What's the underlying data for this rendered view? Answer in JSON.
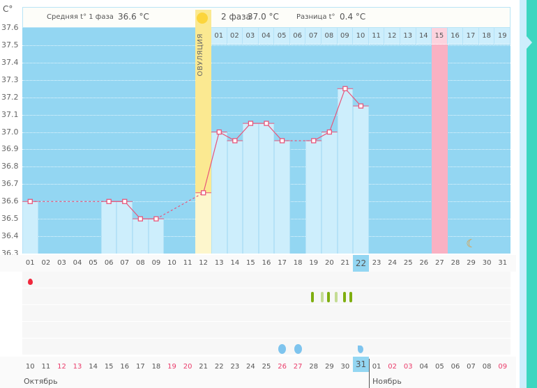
{
  "y_unit": "C°",
  "header": {
    "phase1_label": "Средняя t° 1 фаза",
    "phase1_value": "36.6 °C",
    "phase2_label": "2 фаза",
    "phase2_value": "37.0 °C",
    "diff_label": "Разница t°",
    "diff_value": "0.4 °C"
  },
  "ovulation_label": "ОВУЛЯЦИЯ",
  "y_ticks": [
    "37.6",
    "37.5",
    "37.4",
    "37.3",
    "37.2",
    "37.1",
    "37.0",
    "36.9",
    "36.8",
    "36.7",
    "36.6",
    "36.5",
    "36.4",
    "36.3"
  ],
  "cycle_days": [
    "01",
    "02",
    "03",
    "04",
    "05",
    "06",
    "07",
    "08",
    "09",
    "10",
    "11",
    "12",
    "13",
    "14",
    "15",
    "16",
    "17",
    "18",
    "19"
  ],
  "day_labels": [
    "01",
    "02",
    "03",
    "04",
    "05",
    "06",
    "07",
    "08",
    "09",
    "10",
    "11",
    "12",
    "13",
    "14",
    "15",
    "16",
    "17",
    "18",
    "19",
    "20",
    "21",
    "22",
    "23",
    "24",
    "25",
    "26",
    "27",
    "28",
    "29",
    "30",
    "31"
  ],
  "current_day": "22",
  "dates": [
    "10",
    "11",
    "12",
    "13",
    "14",
    "15",
    "16",
    "17",
    "18",
    "19",
    "20",
    "21",
    "22",
    "23",
    "24",
    "25",
    "26",
    "27",
    "28",
    "29",
    "30",
    "31",
    "01",
    "02",
    "03",
    "04",
    "05",
    "06",
    "07",
    "08",
    "09"
  ],
  "weekend_dates_idx": [
    2,
    3,
    9,
    10,
    16,
    17,
    23,
    24,
    30
  ],
  "months": [
    "Октябрь",
    "Ноябрь"
  ],
  "temperatures": {
    "1": 36.6,
    "6": 36.6,
    "7": 36.6,
    "8": 36.5,
    "9": 36.5,
    "12": 36.65,
    "13": 37.0,
    "14": 36.95,
    "15": 37.05,
    "16": 37.05,
    "17": 36.95,
    "19": 36.95,
    "20": 37.0,
    "21": 37.25,
    "22": 37.15
  },
  "ovulation_day": 12,
  "highlight_day": 27,
  "colors": {
    "plot": "#93d6f2",
    "bar": "#cdeefc",
    "line": "#e8557a",
    "ovulation": "#fbe991",
    "pink": "#f9b1c3",
    "accent": "#3dd6c0"
  }
}
